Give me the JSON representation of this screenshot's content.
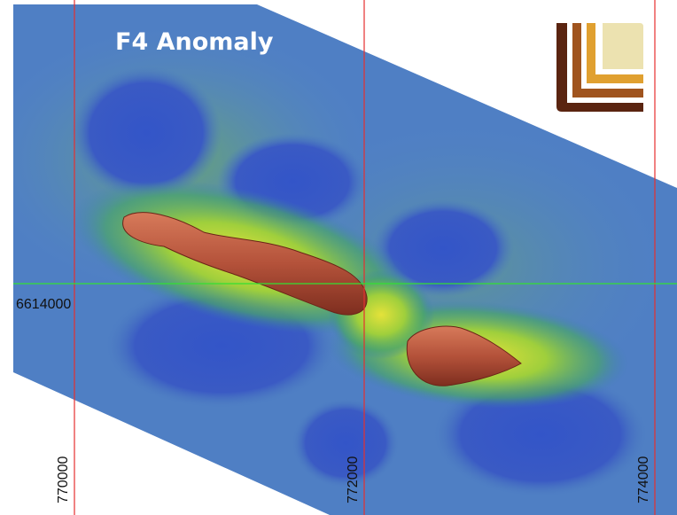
{
  "title": "F4 Anomaly",
  "grid": {
    "eastings": [
      770000,
      772000,
      774000
    ],
    "northings": [
      6614000
    ]
  }
}
